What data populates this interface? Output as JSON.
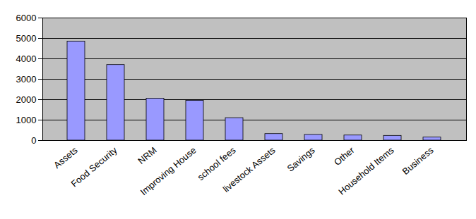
{
  "chart_data": {
    "type": "bar",
    "categories": [
      "Assets",
      "Food Security",
      "NRM",
      "Improving House",
      "school fees",
      "livestock Assets",
      "Savings",
      "Other",
      "Household Items",
      "Business"
    ],
    "values": [
      4850,
      3700,
      2050,
      1950,
      1100,
      320,
      280,
      250,
      230,
      150
    ],
    "color": "#9999ff",
    "ylim": [
      0,
      6000
    ],
    "yticks": [
      0,
      1000,
      2000,
      3000,
      4000,
      5000,
      6000
    ],
    "grid": true
  }
}
